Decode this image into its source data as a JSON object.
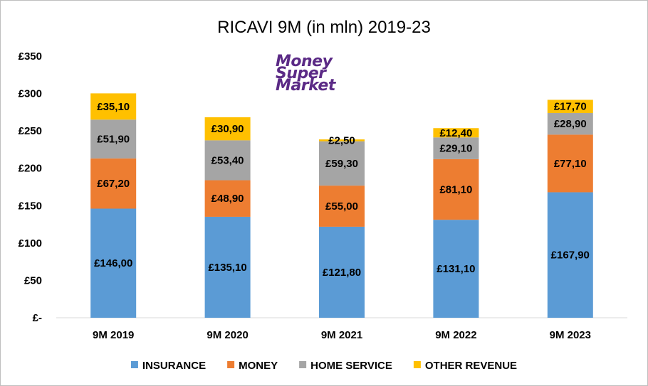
{
  "logo": {
    "lines": [
      "Money",
      "Super",
      "Market"
    ],
    "color": "#5b2a86"
  },
  "chart_data": {
    "type": "bar",
    "stacked": true,
    "title": "RICAVI 9M (in mln) 2019-23",
    "xlabel": "",
    "ylabel": "",
    "ylim": [
      0,
      350
    ],
    "y_ticks": [
      {
        "value": 350,
        "label": "£350"
      },
      {
        "value": 300,
        "label": "£300"
      },
      {
        "value": 250,
        "label": "£250"
      },
      {
        "value": 200,
        "label": "£200"
      },
      {
        "value": 150,
        "label": "£150"
      },
      {
        "value": 100,
        "label": "£100"
      },
      {
        "value": 50,
        "label": "£50"
      },
      {
        "value": 0,
        "label": "£-"
      }
    ],
    "grid": false,
    "legend_position": "bottom",
    "categories": [
      "9M 2019",
      "9M 2020",
      "9M 2021",
      "9M 2022",
      "9M 2023"
    ],
    "series": [
      {
        "name": "INSURANCE",
        "color": "#5b9bd5",
        "values": [
          146.0,
          135.1,
          121.8,
          131.1,
          167.9
        ],
        "labels": [
          "£146,00",
          "£135,10",
          "£121,80",
          "£131,10",
          "£167,90"
        ]
      },
      {
        "name": "MONEY",
        "color": "#ed7d31",
        "values": [
          67.2,
          48.9,
          55.0,
          81.1,
          77.1
        ],
        "labels": [
          "£67,20",
          "£48,90",
          "£55,00",
          "£81,10",
          "£77,10"
        ]
      },
      {
        "name": "HOME SERVICE",
        "color": "#a5a5a5",
        "values": [
          51.9,
          53.4,
          59.3,
          29.1,
          28.9
        ],
        "labels": [
          "£51,90",
          "£53,40",
          "£59,30",
          "£29,10",
          "£28,90"
        ]
      },
      {
        "name": "OTHER REVENUE",
        "color": "#ffc000",
        "values": [
          35.1,
          30.9,
          2.5,
          12.4,
          17.7
        ],
        "labels": [
          "£35,10",
          "£30,90",
          "£2,50",
          "£12,40",
          "£17,70"
        ]
      }
    ]
  }
}
